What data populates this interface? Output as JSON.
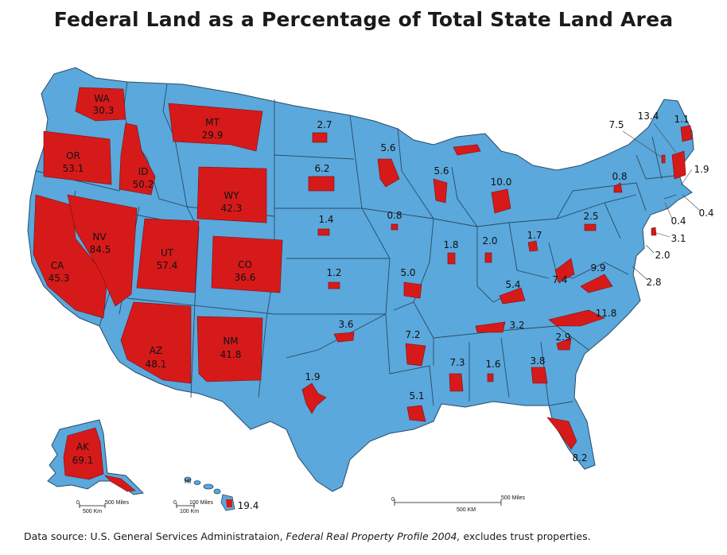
{
  "title": "Federal Land as a Percentage of Total State Land Area",
  "colors": {
    "land": "#5aa8dc",
    "federal": "#d61a1a",
    "border": "#2a4a66",
    "text": "#111111"
  },
  "states": [
    {
      "abbr": "WA",
      "value": "30.3"
    },
    {
      "abbr": "OR",
      "value": "53.1"
    },
    {
      "abbr": "CA",
      "value": "45.3"
    },
    {
      "abbr": "ID",
      "value": "50.2"
    },
    {
      "abbr": "NV",
      "value": "84.5"
    },
    {
      "abbr": "MT",
      "value": "29.9"
    },
    {
      "abbr": "WY",
      "value": "42.3"
    },
    {
      "abbr": "UT",
      "value": "57.4"
    },
    {
      "abbr": "CO",
      "value": "36.6"
    },
    {
      "abbr": "AZ",
      "value": "48.1"
    },
    {
      "abbr": "NM",
      "value": "41.8"
    },
    {
      "abbr": "AK",
      "value": "69.1"
    }
  ],
  "values": {
    "nd": "2.7",
    "sd": "6.2",
    "ne": "1.4",
    "ks": "1.2",
    "ok": "3.6",
    "tx": "1.9",
    "mn": "5.6",
    "wi": "5.6",
    "ia": "0.8",
    "mo": "5.0",
    "ar": "7.2",
    "la": "5.1",
    "mi": "10.0",
    "il": "1.8",
    "in": "2.0",
    "oh": "1.7",
    "ky": "5.4",
    "tn": "3.2",
    "ms": "7.3",
    "al": "1.6",
    "ga": "3.8",
    "fl": "8.2",
    "sc": "2.9",
    "nc": "11.8",
    "va": "9.9",
    "wv": "7.4",
    "pa": "2.5",
    "ny": "0.8",
    "vt": "7.5",
    "nh": "13.4",
    "me": "1.1",
    "ma": "1.9",
    "ri": "0.4",
    "ct": "0.4",
    "nj": "3.1",
    "de": "2.0",
    "md": "2.8",
    "hi": "19.4"
  },
  "hi_label": "HI",
  "scale": {
    "alaska_miles": "500 Miles",
    "alaska_km": "500 Km",
    "hawaii_miles": "100 Miles",
    "hawaii_km": "100 Km",
    "main_miles": "500 Miles",
    "main_km": "500 KM",
    "zero": "0"
  },
  "source": {
    "prefix": "Data source: U.S. General Services Administrataion,",
    "publication": "Federal Real Property Profile 2004,",
    "suffix": "excludes trust properties."
  }
}
